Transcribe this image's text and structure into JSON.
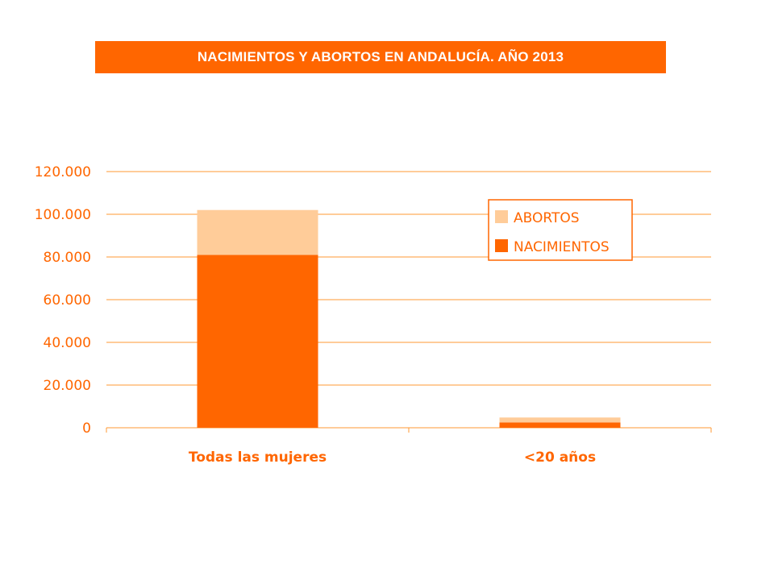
{
  "title": "NACIMIENTOS Y ABORTOS EN ANDALUCÍA. AÑO 2013",
  "colors": {
    "accent": "#ff6600",
    "nacimientos": "#ff6600",
    "abortos": "#ffcc99",
    "grid": "#ff9933"
  },
  "chart_data": {
    "type": "bar",
    "stacked": true,
    "categories": [
      "Todas las mujeres",
      "<20 años"
    ],
    "series": [
      {
        "name": "NACIMIENTOS",
        "values": [
          81000,
          2500
        ]
      },
      {
        "name": "ABORTOS",
        "values": [
          21000,
          2300
        ]
      }
    ],
    "legend": [
      "ABORTOS",
      "NACIMIENTOS"
    ],
    "legend_position": "top-right",
    "ylim": [
      0,
      120000
    ],
    "yticks": [
      0,
      20000,
      40000,
      60000,
      80000,
      100000,
      120000
    ],
    "ytick_labels": [
      "0",
      "20.000",
      "40.000",
      "60.000",
      "80.000",
      "100.000",
      "120.000"
    ],
    "grid": true,
    "xlabel": "",
    "ylabel": ""
  }
}
